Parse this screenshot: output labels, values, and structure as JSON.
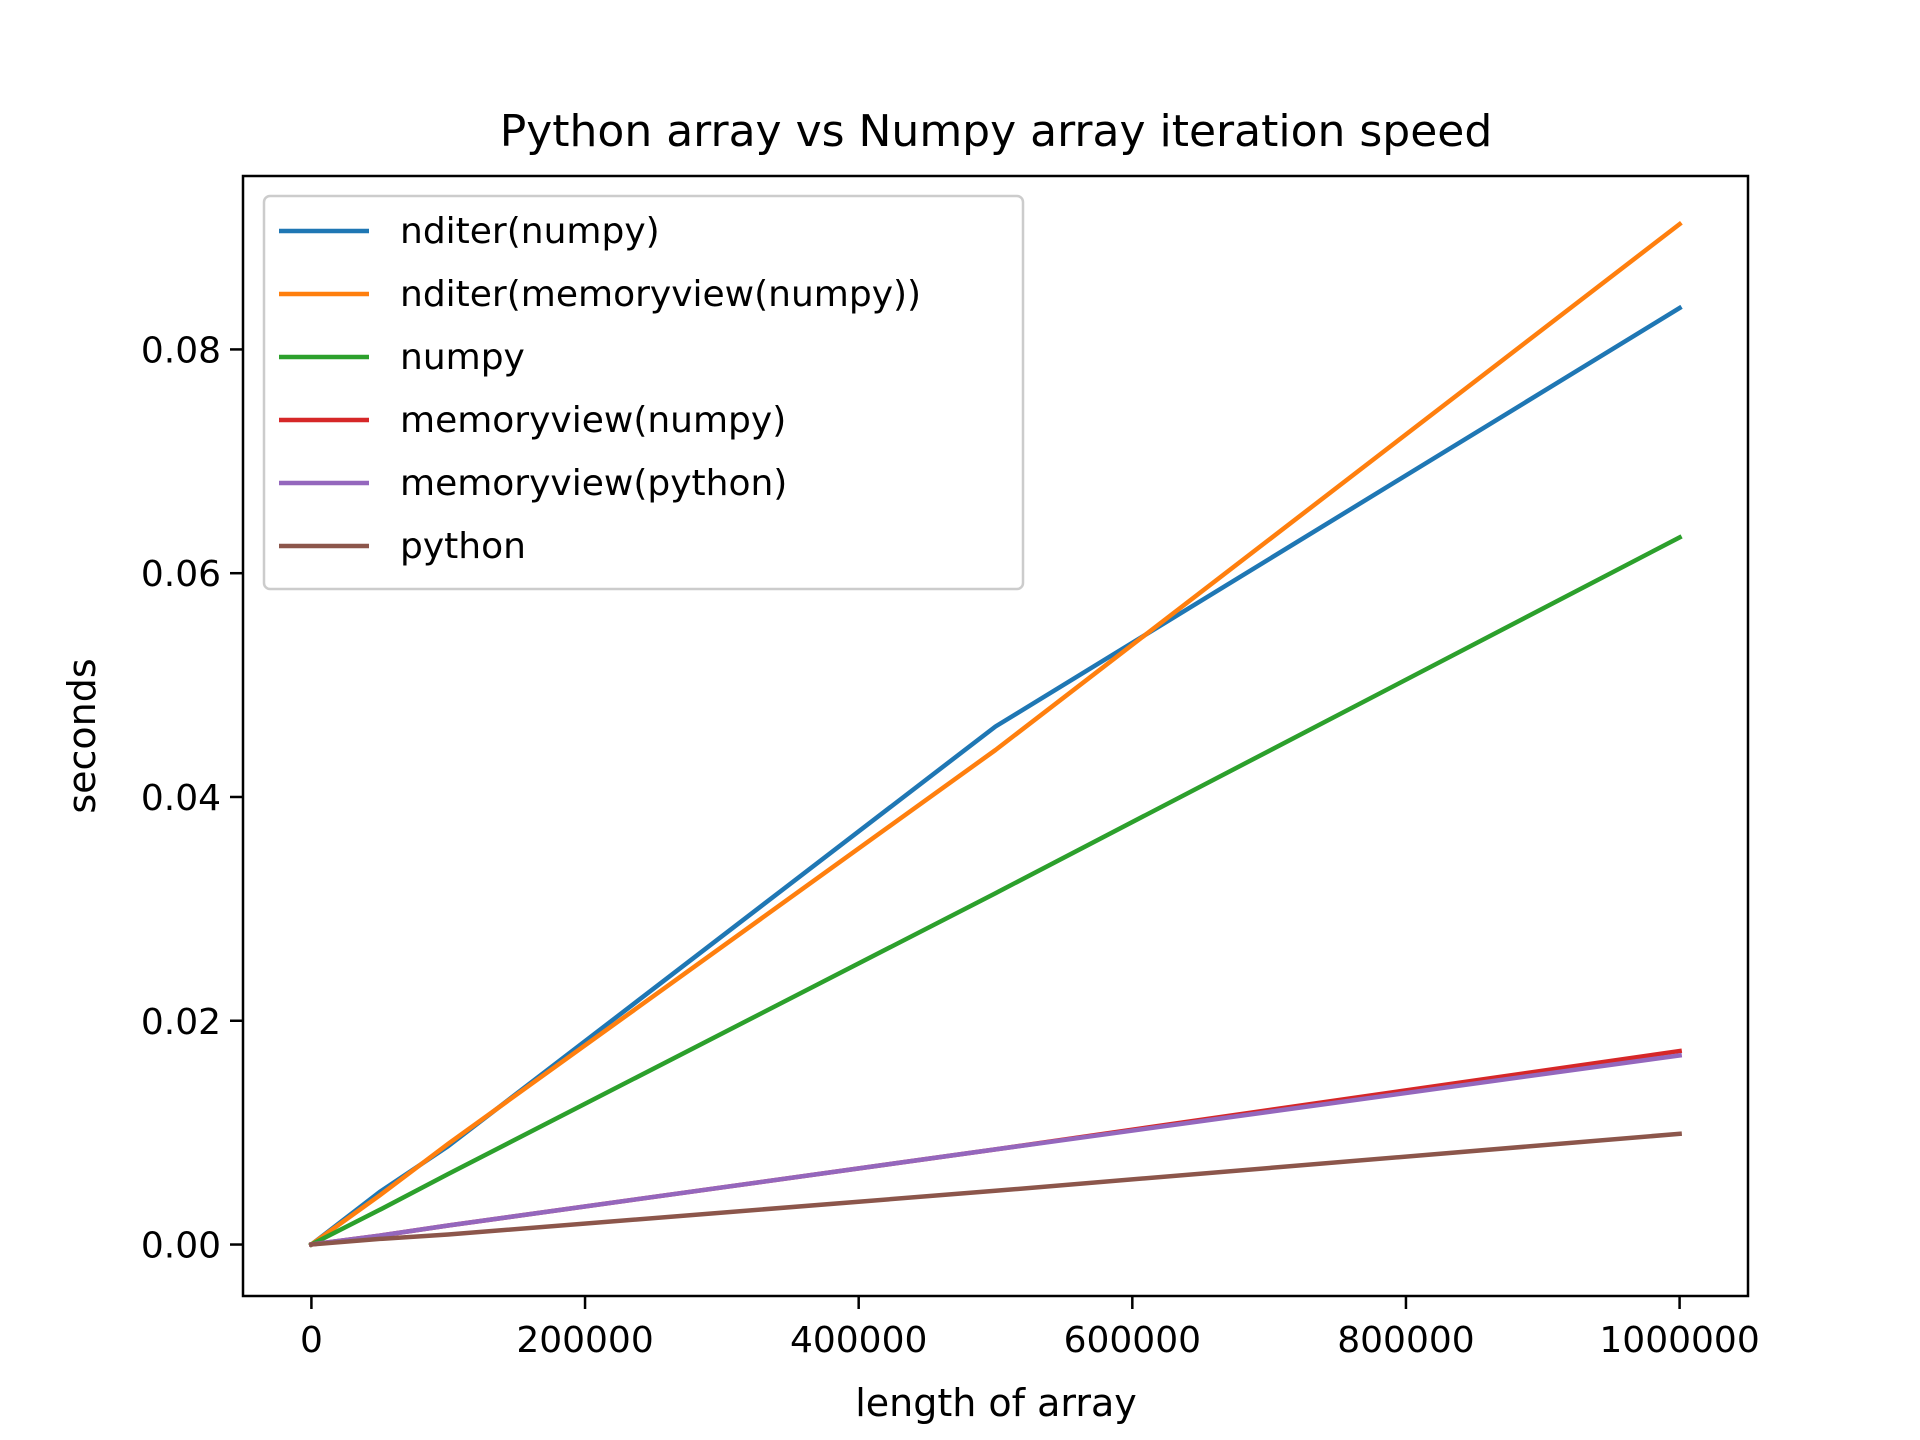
{
  "chart_data": {
    "type": "line",
    "title": "Python array vs Numpy array iteration speed",
    "xlabel": "length of array",
    "ylabel": "seconds",
    "xlim": [
      -50000,
      1050000
    ],
    "ylim": [
      -0.0046,
      0.0955
    ],
    "xticks": [
      0,
      200000,
      400000,
      600000,
      800000,
      1000000
    ],
    "xtick_labels": [
      "0",
      "200000",
      "400000",
      "600000",
      "800000",
      "1000000"
    ],
    "yticks": [
      0.0,
      0.02,
      0.04,
      0.06,
      0.08
    ],
    "ytick_labels": [
      "0.00",
      "0.02",
      "0.04",
      "0.06",
      "0.08"
    ],
    "legend_position": "top-left",
    "grid": false,
    "x": [
      0,
      50000,
      100000,
      500000,
      1000000
    ],
    "series": [
      {
        "name": "nditer(numpy)",
        "color": "#1f77b4",
        "values": [
          0,
          0.0047,
          0.0088,
          0.0463,
          0.0837
        ]
      },
      {
        "name": "nditer(memoryview(numpy))",
        "color": "#ff7f0e",
        "values": [
          0,
          0.0044,
          0.009,
          0.0442,
          0.0912
        ]
      },
      {
        "name": "numpy",
        "color": "#2ca02c",
        "values": [
          0,
          0.0031,
          0.0063,
          0.0314,
          0.0632
        ]
      },
      {
        "name": "memoryview(numpy)",
        "color": "#d62728",
        "values": [
          0,
          0.0008,
          0.0017,
          0.0085,
          0.0173
        ]
      },
      {
        "name": "memoryview(python)",
        "color": "#9467bd",
        "values": [
          0,
          0.0008,
          0.0017,
          0.0085,
          0.0169
        ]
      },
      {
        "name": "python",
        "color": "#8c564b",
        "values": [
          0,
          0.0005,
          0.0009,
          0.0048,
          0.0099
        ]
      }
    ]
  }
}
